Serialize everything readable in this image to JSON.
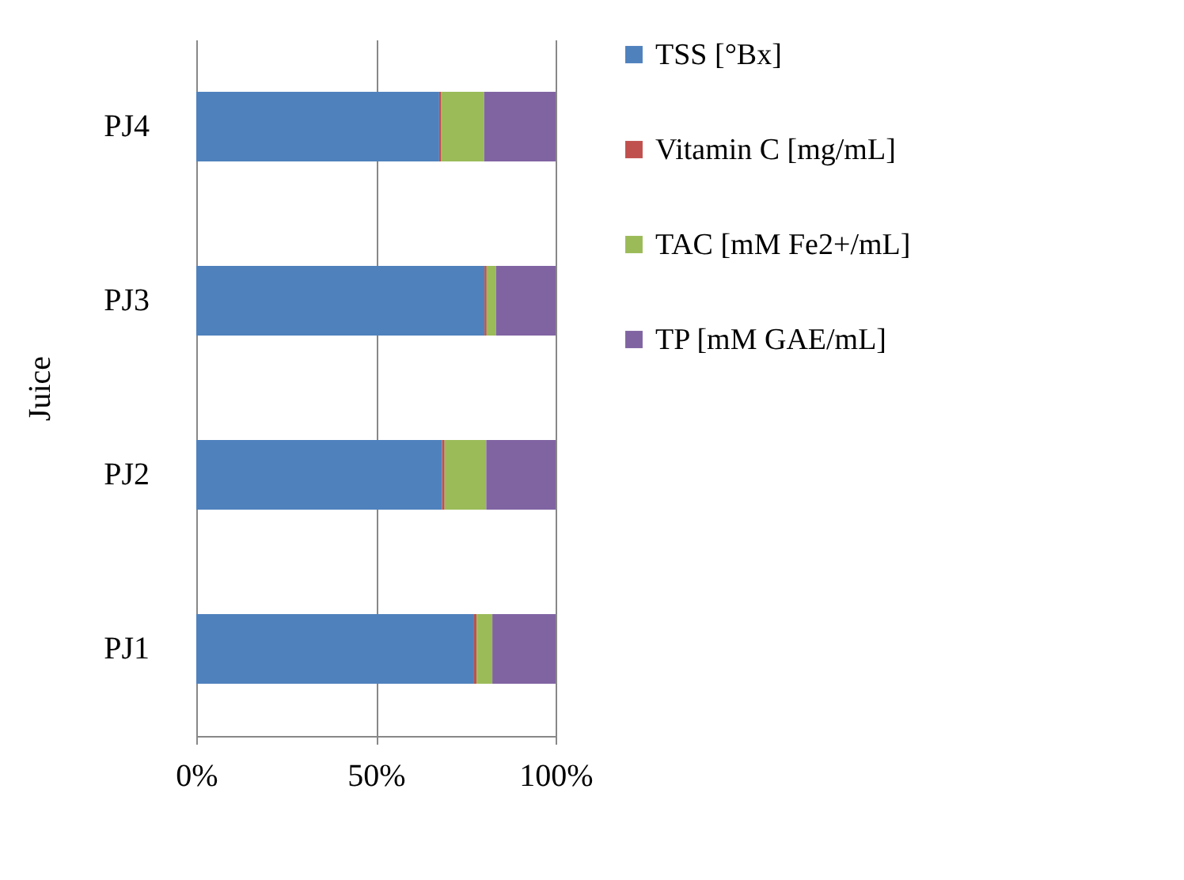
{
  "chart_data": {
    "type": "bar",
    "orientation": "horizontal",
    "stacked": true,
    "ylabel": "Juice",
    "categories": [
      "PJ4",
      "PJ3",
      "PJ2",
      "PJ1"
    ],
    "series": [
      {
        "name": "TSS [°Bx]",
        "color": "#4f81bd",
        "values": [
          0.676,
          0.802,
          0.684,
          0.773
        ]
      },
      {
        "name": "Vitamin C [mg/mL]",
        "color": "#c0504d",
        "values": [
          0.006,
          0.006,
          0.007,
          0.007
        ]
      },
      {
        "name": "TAC [mM Fe2+/mL]",
        "color": "#9bbb59",
        "values": [
          0.119,
          0.026,
          0.116,
          0.044
        ]
      },
      {
        "name": "TP [mM GAE/mL]",
        "color": "#8064a2",
        "values": [
          0.199,
          0.166,
          0.193,
          0.176
        ]
      }
    ],
    "xlim": [
      0,
      1
    ],
    "xticks": [
      {
        "value": 0,
        "label": "0%"
      },
      {
        "value": 0.5,
        "label": "50%"
      },
      {
        "value": 1,
        "label": "100%"
      }
    ],
    "grid": "x",
    "legend": "right"
  }
}
